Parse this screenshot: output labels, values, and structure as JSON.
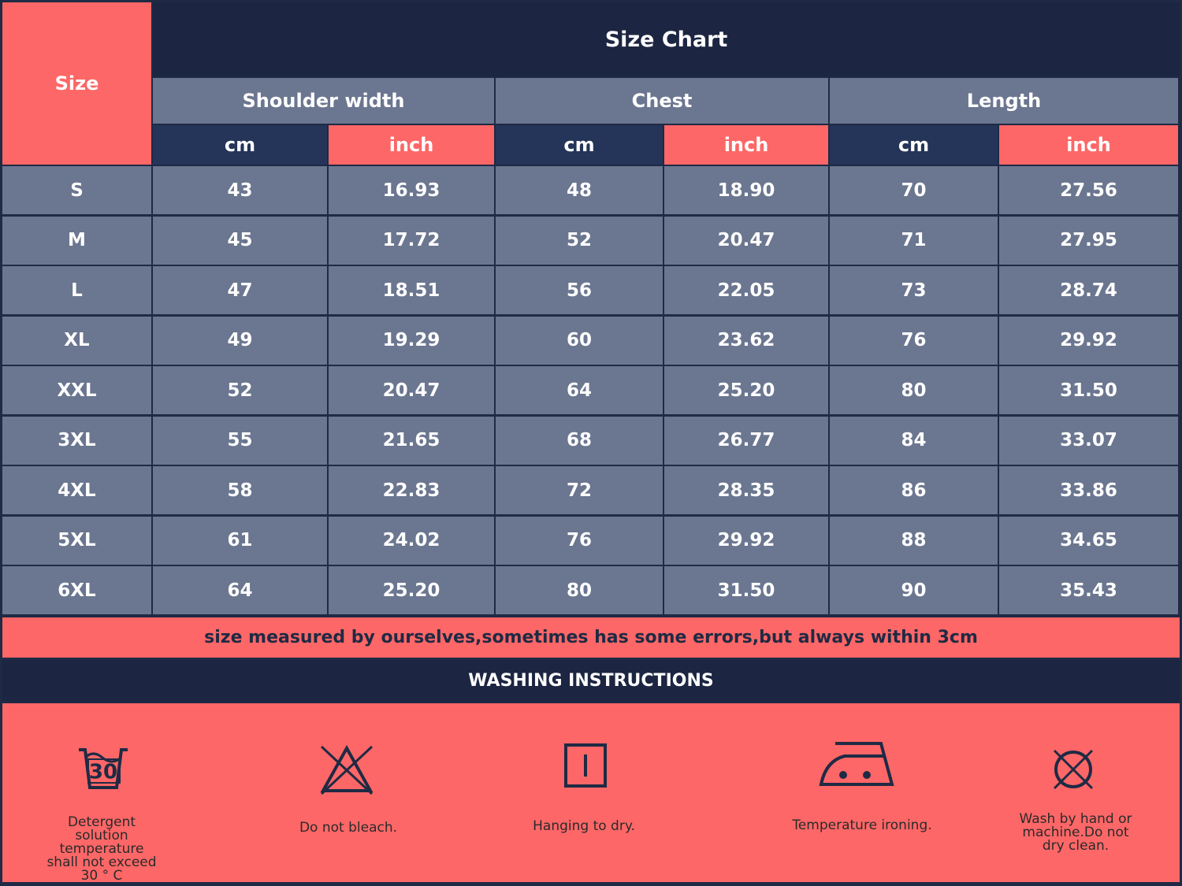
{
  "table": {
    "title": "Size Chart",
    "corner": "Size",
    "groups": [
      "Shoulder width",
      "Chest",
      "Length"
    ],
    "units": [
      "cm",
      "inch",
      "cm",
      "inch",
      "cm",
      "inch"
    ],
    "rows": [
      [
        "S",
        "43",
        "16.93",
        "48",
        "18.90",
        "70",
        "27.56"
      ],
      [
        "M",
        "45",
        "17.72",
        "52",
        "20.47",
        "71",
        "27.95"
      ],
      [
        "L",
        "47",
        "18.51",
        "56",
        "22.05",
        "73",
        "28.74"
      ],
      [
        "XL",
        "49",
        "19.29",
        "60",
        "23.62",
        "76",
        "29.92"
      ],
      [
        "XXL",
        "52",
        "20.47",
        "64",
        "25.20",
        "80",
        "31.50"
      ],
      [
        "3XL",
        "55",
        "21.65",
        "68",
        "26.77",
        "84",
        "33.07"
      ],
      [
        "4XL",
        "58",
        "22.83",
        "72",
        "28.35",
        "86",
        "33.86"
      ],
      [
        "5XL",
        "61",
        "24.02",
        "76",
        "29.92",
        "88",
        "34.65"
      ],
      [
        "6XL",
        "64",
        "25.20",
        "80",
        "31.50",
        "90",
        "35.43"
      ]
    ]
  },
  "note": "size measured by ourselves,sometimes has some errors,but always within 3cm",
  "washing": {
    "title": "WASHING INSTRUCTIONS",
    "icon_text": "30",
    "items": [
      "Detergent solution temperature shall not exceed 30 ° C",
      "Do not bleach.",
      "Hanging to dry.",
      "Temperature ironing.",
      "Wash by hand or machine.Do not dry clean."
    ]
  }
}
